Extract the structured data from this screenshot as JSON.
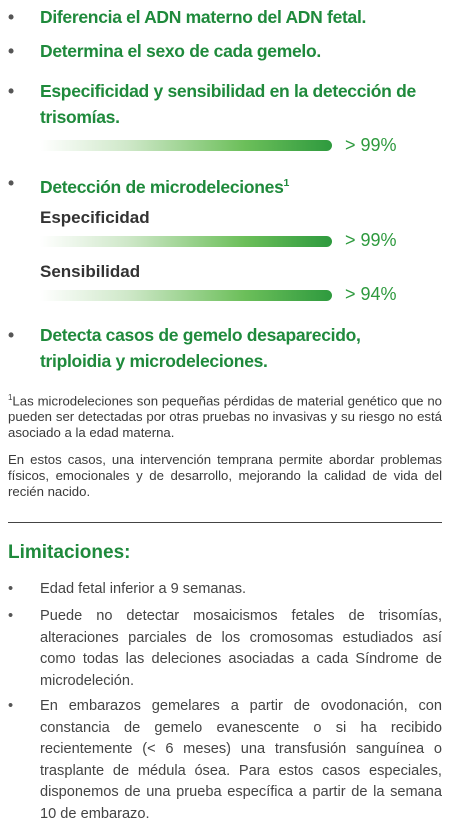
{
  "highlights": [
    {
      "text": "Diferencia el ADN materno del ADN fetal."
    },
    {
      "text": "Determina el sexo de cada gemelo."
    },
    {
      "text": "Especificidad y sensibilidad en la detección de trisomías.",
      "label": "> 99%"
    },
    {
      "text": "Detección de microdeleciones",
      "note": "1",
      "metrics": [
        {
          "name": "Especificidad",
          "label": "> 99%"
        },
        {
          "name": "Sensibilidad",
          "label": "> 94%"
        }
      ]
    },
    {
      "text": "Detecta casos de gemelo desaparecido, triploidia y microdeleciones."
    }
  ],
  "footnote": {
    "mark": "1",
    "text": "Las microdeleciones son pequeñas pérdidas de material genético que no pueden ser detectadas por otras pruebas no invasivas y su riesgo no está asociado a la edad materna."
  },
  "paragraph": "En estos casos, una intervención temprana permite abordar problemas físicos, emocionales y de desarrollo, mejorando la calidad de vida del recién nacido.",
  "limitations": {
    "title": "Limitaciones:",
    "items": [
      "Edad fetal inferior a 9 semanas.",
      "Puede no detectar mosaicismos fetales de trisomías, alteraciones parciales de los cromosomas estudiados así como todas las deleciones asociadas a cada Síndrome de microdeleción.",
      "En embarazos gemelares a partir de ovodonación, con constancia de gemelo evanescente o si ha recibido recientemente (< 6 meses) una transfusión sanguínea o trasplante de médula ósea. Para estos casos especiales, disponemos de una prueba específica a partir de la semana 10 de embarazo."
    ]
  }
}
